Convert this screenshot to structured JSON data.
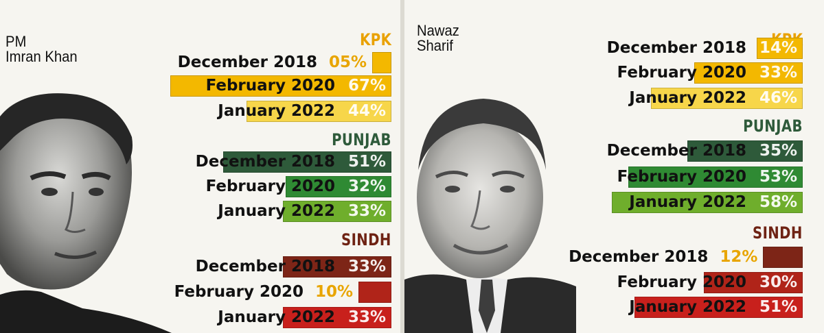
{
  "colors": {
    "kpk": "#f3b800",
    "kpk_light": "#f7d64a",
    "kpk_head": "#e9a100",
    "punjab_dark": "#2e5a3a",
    "punjab_mid": "#2f8a33",
    "punjab_light": "#6fae2c",
    "sindh_head": "#6e2213",
    "sindh_dark": "#7d2517",
    "sindh_mid": "#b02419",
    "sindh_light": "#c8201c"
  },
  "chart_data": [
    {
      "type": "bar",
      "person": [
        "PM",
        "Imran Khan"
      ],
      "xlim": [
        0,
        100
      ],
      "regions": [
        {
          "name": "KPK",
          "rows": [
            {
              "date": "December 2018",
              "value": 5,
              "pct": "05%"
            },
            {
              "date": "February 2020",
              "value": 67,
              "pct": "67%"
            },
            {
              "date": "January 2022",
              "value": 44,
              "pct": "44%"
            }
          ]
        },
        {
          "name": "PUNJAB",
          "rows": [
            {
              "date": "December 2018",
              "value": 51,
              "pct": "51%"
            },
            {
              "date": "February 2020",
              "value": 32,
              "pct": "32%"
            },
            {
              "date": "January 2022",
              "value": 33,
              "pct": "33%"
            }
          ]
        },
        {
          "name": "SINDH",
          "rows": [
            {
              "date": "December 2018",
              "value": 33,
              "pct": "33%"
            },
            {
              "date": "February 2020",
              "value": 10,
              "pct": "10%"
            },
            {
              "date": "January 2022",
              "value": 33,
              "pct": "33%"
            }
          ]
        }
      ]
    },
    {
      "type": "bar",
      "person": [
        "Nawaz",
        "Sharif"
      ],
      "xlim": [
        0,
        100
      ],
      "regions": [
        {
          "name": "KPK",
          "rows": [
            {
              "date": "December 2018",
              "value": 14,
              "pct": "14%"
            },
            {
              "date": "February 2020",
              "value": 33,
              "pct": "33%"
            },
            {
              "date": "January 2022",
              "value": 46,
              "pct": "46%"
            }
          ]
        },
        {
          "name": "PUNJAB",
          "rows": [
            {
              "date": "December 2018",
              "value": 35,
              "pct": "35%"
            },
            {
              "date": "February 2020",
              "value": 53,
              "pct": "53%"
            },
            {
              "date": "January 2022",
              "value": 58,
              "pct": "58%"
            }
          ]
        },
        {
          "name": "SINDH",
          "rows": [
            {
              "date": "December 2018",
              "value": 12,
              "pct": "12%"
            },
            {
              "date": "February 2020",
              "value": 30,
              "pct": "30%"
            },
            {
              "date": "January 2022",
              "value": 51,
              "pct": "51%"
            }
          ]
        }
      ]
    }
  ]
}
